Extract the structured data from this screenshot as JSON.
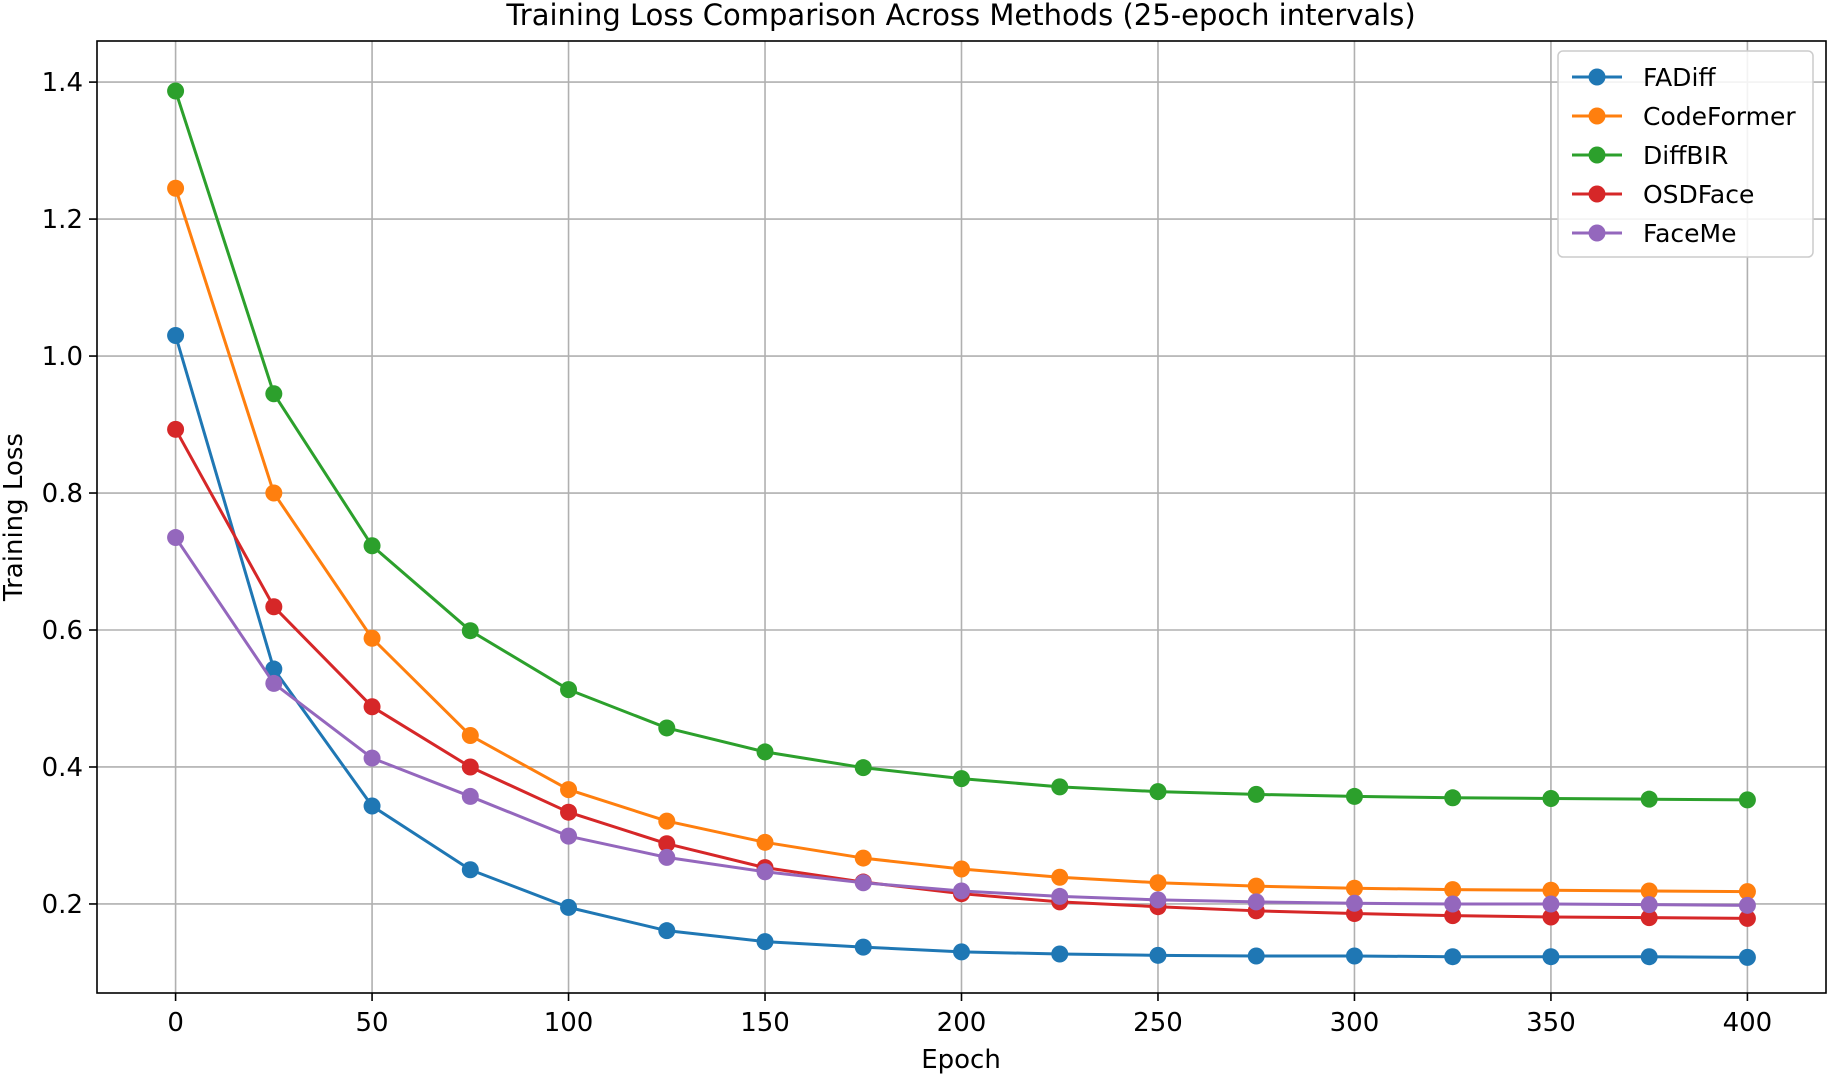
{
  "chart_data": {
    "type": "line",
    "title": "Training Loss Comparison Across Methods (25-epoch intervals)",
    "xlabel": "Epoch",
    "ylabel": "Training Loss",
    "xlim": [
      -20,
      420
    ],
    "ylim": [
      0.07,
      1.46
    ],
    "xticks": [
      0,
      50,
      100,
      150,
      200,
      250,
      300,
      350,
      400
    ],
    "xtick_labels": [
      "0",
      "50",
      "100",
      "150",
      "200",
      "250",
      "300",
      "350",
      "400"
    ],
    "yticks": [
      0.2,
      0.4,
      0.6,
      0.8,
      1.0,
      1.2,
      1.4
    ],
    "ytick_labels": [
      "0.2",
      "0.4",
      "0.6",
      "0.8",
      "1.0",
      "1.2",
      "1.4"
    ],
    "grid": true,
    "legend_position": "top-right",
    "x": [
      0,
      25,
      50,
      75,
      100,
      125,
      150,
      175,
      200,
      225,
      250,
      275,
      300,
      325,
      350,
      375,
      400
    ],
    "series": [
      {
        "name": "FADiff",
        "color": "#1f77b4",
        "values": [
          1.03,
          0.543,
          0.343,
          0.25,
          0.195,
          0.161,
          0.145,
          0.137,
          0.13,
          0.127,
          0.125,
          0.124,
          0.124,
          0.123,
          0.123,
          0.123,
          0.122
        ]
      },
      {
        "name": "CodeFormer",
        "color": "#ff7f0e",
        "values": [
          1.245,
          0.8,
          0.588,
          0.446,
          0.367,
          0.321,
          0.29,
          0.267,
          0.251,
          0.239,
          0.231,
          0.226,
          0.223,
          0.221,
          0.22,
          0.219,
          0.218
        ]
      },
      {
        "name": "DiffBIR",
        "color": "#2ca02c",
        "values": [
          1.387,
          0.945,
          0.723,
          0.599,
          0.513,
          0.457,
          0.422,
          0.399,
          0.383,
          0.371,
          0.364,
          0.36,
          0.357,
          0.355,
          0.354,
          0.353,
          0.352
        ]
      },
      {
        "name": "OSDFace",
        "color": "#d62728",
        "values": [
          0.893,
          0.634,
          0.488,
          0.4,
          0.334,
          0.288,
          0.253,
          0.232,
          0.215,
          0.203,
          0.196,
          0.19,
          0.186,
          0.183,
          0.181,
          0.18,
          0.179
        ]
      },
      {
        "name": "FaceMe",
        "color": "#9467bd",
        "values": [
          0.735,
          0.522,
          0.413,
          0.357,
          0.299,
          0.268,
          0.247,
          0.231,
          0.219,
          0.211,
          0.206,
          0.203,
          0.201,
          0.2,
          0.2,
          0.199,
          0.198
        ]
      }
    ]
  }
}
